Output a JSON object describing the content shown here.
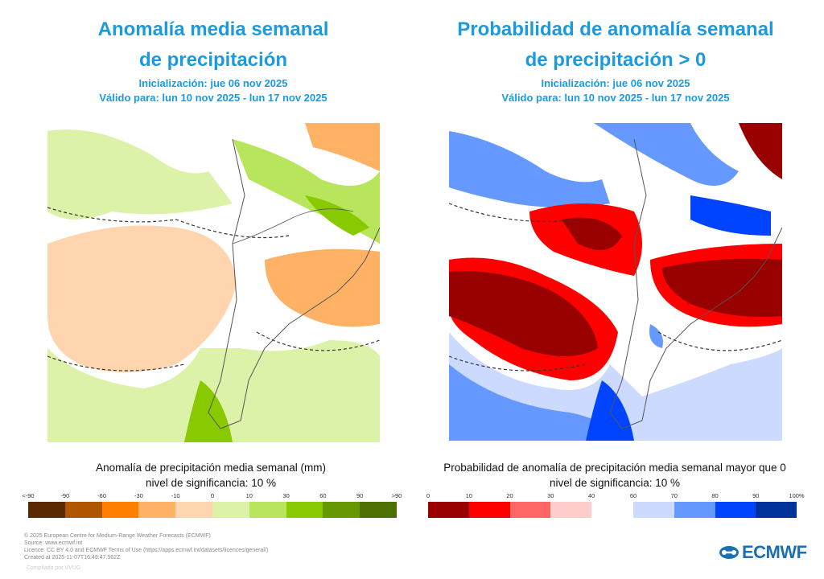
{
  "left": {
    "title_line1": "Anomalía media semanal",
    "title_line2": "de precipitación",
    "init": "Inicialización: jue 06 nov 2025",
    "valid": "Válido para: lun 10 nov 2025 - lun 17 nov 2025",
    "caption": "Anomalía de precipitación media semanal (mm)",
    "significance": "nivel de significancia: 10 %",
    "legend_ticks": [
      "<-90",
      "-90",
      "-60",
      "-30",
      "-10",
      "0",
      "10",
      "30",
      "60",
      "90",
      ">90"
    ],
    "legend_colors": [
      "#5a2a00",
      "#b05500",
      "#ff8000",
      "#ffb266",
      "#ffd5b0",
      "#dcf2a8",
      "#b8e55c",
      "#88c900",
      "#669900",
      "#4d7000"
    ]
  },
  "right": {
    "title_line1": "Probabilidad de anomalía semanal",
    "title_line2": "de precipitación > 0",
    "init": "Inicialización: jue 06 nov 2025",
    "valid": "Válido para: lun 10 nov 2025 - lun 17 nov 2025",
    "caption": "Probabilidad de anomalía de precipitación media semanal mayor que 0",
    "significance": "nivel de significancia: 10 %",
    "legend_red_ticks": [
      "0",
      "10",
      "20",
      "30",
      "40"
    ],
    "legend_red_colors": [
      "#990000",
      "#ff0000",
      "#ff6666",
      "#ffcccc"
    ],
    "legend_blue_ticks": [
      "60",
      "70",
      "80",
      "90",
      "100%"
    ],
    "legend_blue_colors": [
      "#ccdaff",
      "#6699ff",
      "#0044ff",
      "#003399"
    ]
  },
  "footer": {
    "lines": [
      "© 2025 European Centre for Medium-Range Weather Forecasts (ECMWF)",
      "Source: www.ecmwf.int",
      "Licence: CC BY 4.0 and ECMWF Terms of Use (https://apps.ecmwf.int/datasets/licences/general/)",
      "Created at 2025-11-07T16:49:47.562Z"
    ],
    "compiled": "Compilado por VVUG",
    "logo": "ECMWF"
  }
}
